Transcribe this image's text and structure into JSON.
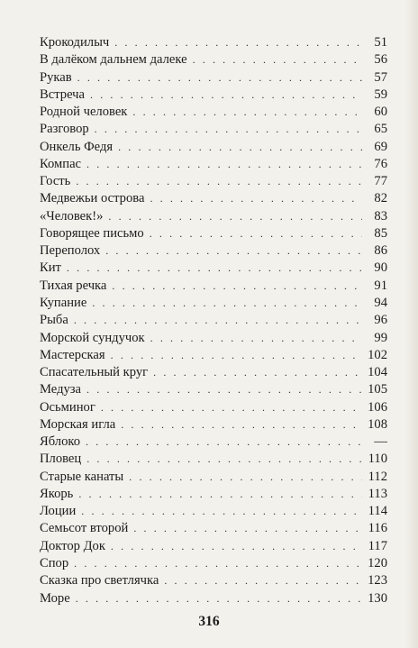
{
  "toc": [
    {
      "title": "Крокодилыч",
      "page": "51"
    },
    {
      "title": "В далёком дальнем далеке",
      "page": "56"
    },
    {
      "title": "Рукав",
      "page": "57"
    },
    {
      "title": "Встреча",
      "page": "59"
    },
    {
      "title": "Родной человек",
      "page": "60"
    },
    {
      "title": "Разговор",
      "page": "65"
    },
    {
      "title": "Онкель Федя",
      "page": "69"
    },
    {
      "title": "Компас",
      "page": "76"
    },
    {
      "title": "Гость",
      "page": "77"
    },
    {
      "title": "Медвежьи острова",
      "page": "82"
    },
    {
      "title": "«Человек!»",
      "page": "83"
    },
    {
      "title": "Говорящее письмо",
      "page": "85"
    },
    {
      "title": "Переполох",
      "page": "86"
    },
    {
      "title": "Кит",
      "page": "90"
    },
    {
      "title": "Тихая речка",
      "page": "91"
    },
    {
      "title": "Купание",
      "page": "94"
    },
    {
      "title": "Рыба",
      "page": "96"
    },
    {
      "title": "Морской сундучок",
      "page": "99"
    },
    {
      "title": "Мастерская",
      "page": "102"
    },
    {
      "title": "Спасательный круг",
      "page": "104"
    },
    {
      "title": "Медуза",
      "page": "105"
    },
    {
      "title": "Осьминог",
      "page": "106"
    },
    {
      "title": "Морская игла",
      "page": "108"
    },
    {
      "title": "Яблоко",
      "page": "—"
    },
    {
      "title": "Пловец",
      "page": "110"
    },
    {
      "title": "Старые канаты",
      "page": "112"
    },
    {
      "title": "Якорь",
      "page": "113"
    },
    {
      "title": "Лоции",
      "page": "114"
    },
    {
      "title": "Семьсот второй",
      "page": "116"
    },
    {
      "title": "Доктор Док",
      "page": "117"
    },
    {
      "title": "Спор",
      "page": "120"
    },
    {
      "title": "Сказка про светлячка",
      "page": "123"
    },
    {
      "title": "Море",
      "page": "130"
    }
  ],
  "footer": {
    "page_number": "316"
  }
}
